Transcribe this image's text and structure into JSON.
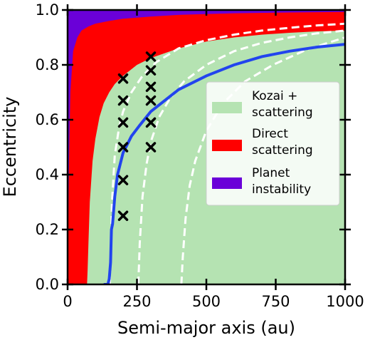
{
  "chart_data": {
    "type": "area",
    "title": "",
    "xlabel": "Semi-major axis (au)",
    "ylabel": "Eccentricity",
    "xlim": [
      0,
      1000
    ],
    "ylim": [
      0,
      1.0
    ],
    "x_ticks": [
      "0",
      "250",
      "500",
      "750",
      "1000"
    ],
    "y_ticks": [
      "0.0",
      "0.2",
      "0.4",
      "0.6",
      "0.8",
      "1.0"
    ],
    "grid": false,
    "legend_position": "center-right",
    "colors": {
      "kozai": "#b5e3b2",
      "direct": "#ff0000",
      "instability": "#6a00d8",
      "solid_line": "#2244ee",
      "dashed_line": "#ffffff",
      "markers": "#000000"
    },
    "legend": [
      {
        "key": "kozai",
        "line1": "Kozai +",
        "line2": "scattering"
      },
      {
        "key": "direct",
        "line1": "Direct",
        "line2": "scattering"
      },
      {
        "key": "instability",
        "line1": "Planet",
        "line2": "instability"
      }
    ],
    "regions": {
      "instability_boundary": {
        "x": [
          0,
          5,
          10,
          20,
          35,
          50,
          75,
          100,
          150,
          200,
          300,
          400,
          600,
          800,
          1000
        ],
        "y": [
          0.0,
          0.45,
          0.7,
          0.85,
          0.9,
          0.925,
          0.94,
          0.95,
          0.96,
          0.968,
          0.976,
          0.982,
          0.988,
          0.991,
          0.993
        ]
      },
      "direct_boundary": {
        "x": [
          70,
          72,
          75,
          80,
          90,
          100,
          115,
          130,
          150,
          170,
          200,
          250,
          300,
          400,
          500,
          600,
          700,
          800,
          900,
          1000
        ],
        "y": [
          0.0,
          0.05,
          0.15,
          0.3,
          0.45,
          0.53,
          0.61,
          0.66,
          0.7,
          0.73,
          0.76,
          0.8,
          0.825,
          0.86,
          0.885,
          0.9,
          0.91,
          0.917,
          0.922,
          0.925
        ]
      }
    },
    "solid_curve": {
      "x": [
        130,
        145,
        150,
        155,
        158,
        162,
        170,
        180,
        200,
        230,
        260,
        300,
        350,
        400,
        500,
        600,
        700,
        800,
        900,
        1000
      ],
      "y": [
        0.0,
        0.0,
        0.02,
        0.08,
        0.2,
        0.22,
        0.32,
        0.4,
        0.48,
        0.54,
        0.58,
        0.63,
        0.67,
        0.71,
        0.76,
        0.8,
        0.83,
        0.85,
        0.865,
        0.875
      ]
    },
    "dashed_curves": [
      {
        "x": [
          152,
          160,
          170,
          185,
          200,
          230,
          270,
          320,
          400,
          500,
          600,
          700,
          800,
          900,
          1000
        ],
        "y": [
          0.0,
          0.3,
          0.47,
          0.57,
          0.63,
          0.7,
          0.76,
          0.81,
          0.86,
          0.89,
          0.91,
          0.925,
          0.935,
          0.944,
          0.95
        ]
      },
      {
        "x": [
          255,
          260,
          270,
          285,
          300,
          330,
          370,
          420,
          500,
          600,
          700,
          800,
          900,
          1000
        ],
        "y": [
          0.0,
          0.15,
          0.32,
          0.44,
          0.52,
          0.61,
          0.68,
          0.74,
          0.8,
          0.85,
          0.88,
          0.9,
          0.915,
          0.925
        ]
      },
      {
        "x": [
          410,
          415,
          425,
          440,
          460,
          500,
          560,
          640,
          740,
          860,
          1000
        ],
        "y": [
          0.0,
          0.1,
          0.24,
          0.36,
          0.45,
          0.56,
          0.66,
          0.74,
          0.8,
          0.855,
          0.9
        ]
      }
    ],
    "markers": [
      {
        "x": 200,
        "y": 0.25
      },
      {
        "x": 200,
        "y": 0.38
      },
      {
        "x": 200,
        "y": 0.5
      },
      {
        "x": 200,
        "y": 0.59
      },
      {
        "x": 200,
        "y": 0.67
      },
      {
        "x": 200,
        "y": 0.75
      },
      {
        "x": 300,
        "y": 0.5
      },
      {
        "x": 300,
        "y": 0.59
      },
      {
        "x": 300,
        "y": 0.67
      },
      {
        "x": 300,
        "y": 0.72
      },
      {
        "x": 300,
        "y": 0.78
      },
      {
        "x": 300,
        "y": 0.83
      }
    ]
  }
}
